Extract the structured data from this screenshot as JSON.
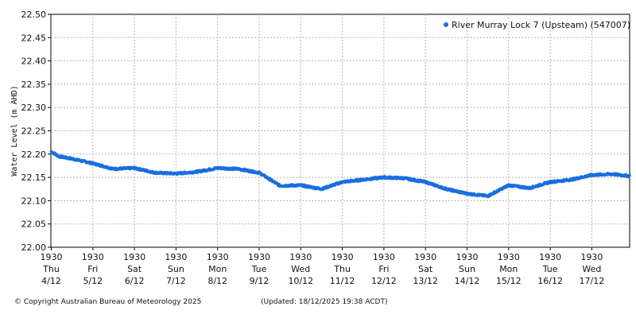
{
  "chart_data": {
    "type": "scatter",
    "ylabel": "Water Level (m AHD)",
    "xlabel": "",
    "ylim": [
      22.0,
      22.5
    ],
    "y_ticks": [
      "22.00",
      "22.05",
      "22.10",
      "22.15",
      "22.20",
      "22.25",
      "22.30",
      "22.35",
      "22.40",
      "22.45",
      "22.50"
    ],
    "x_ticks": [
      {
        "time": "1930",
        "day": "Thu",
        "date": "4/12"
      },
      {
        "time": "1930",
        "day": "Fri",
        "date": "5/12"
      },
      {
        "time": "1930",
        "day": "Sat",
        "date": "6/12"
      },
      {
        "time": "1930",
        "day": "Sun",
        "date": "7/12"
      },
      {
        "time": "1930",
        "day": "Mon",
        "date": "8/12"
      },
      {
        "time": "1930",
        "day": "Tue",
        "date": "9/12"
      },
      {
        "time": "1930",
        "day": "Wed",
        "date": "10/12"
      },
      {
        "time": "1930",
        "day": "Thu",
        "date": "11/12"
      },
      {
        "time": "1930",
        "day": "Fri",
        "date": "12/12"
      },
      {
        "time": "1930",
        "day": "Sat",
        "date": "13/12"
      },
      {
        "time": "1930",
        "day": "Sun",
        "date": "14/12"
      },
      {
        "time": "1930",
        "day": "Mon",
        "date": "15/12"
      },
      {
        "time": "1930",
        "day": "Tue",
        "date": "16/12"
      },
      {
        "time": "1930",
        "day": "Wed",
        "date": "17/12"
      }
    ],
    "grid": true,
    "legend_position": "top-right",
    "series": [
      {
        "name": "River Murray Lock 7 (Upsteam) (547007)",
        "color": "#1a6fe0",
        "x": [
          "4/12 19:30",
          "5/12 00:00",
          "5/12 07:30",
          "5/12 19:30",
          "6/12 07:30",
          "6/12 19:30",
          "7/12 07:30",
          "7/12 19:30",
          "8/12 07:30",
          "8/12 19:30",
          "9/12 07:30",
          "9/12 19:30",
          "10/12 07:30",
          "10/12 19:30",
          "11/12 07:30",
          "11/12 19:30",
          "12/12 07:30",
          "12/12 19:30",
          "13/12 07:30",
          "13/12 19:30",
          "14/12 07:30",
          "14/12 19:30",
          "15/12 07:30",
          "15/12 19:30",
          "16/12 07:30",
          "16/12 19:30",
          "17/12 07:30",
          "17/12 19:30",
          "18/12 07:30",
          "18/12 19:30"
        ],
        "y": [
          22.205,
          22.195,
          22.19,
          22.18,
          22.168,
          22.17,
          22.16,
          22.158,
          22.162,
          22.17,
          22.168,
          22.16,
          22.132,
          22.133,
          22.125,
          22.14,
          22.145,
          22.15,
          22.148,
          22.14,
          22.125,
          22.115,
          22.11,
          22.133,
          22.127,
          22.14,
          22.145,
          22.155,
          22.157,
          22.152
        ]
      }
    ]
  },
  "footer": {
    "copyright": "© Copyright Australian Bureau of Meteorology 2025",
    "updated": "(Updated: 18/12/2025 19:38 ACDT)"
  }
}
